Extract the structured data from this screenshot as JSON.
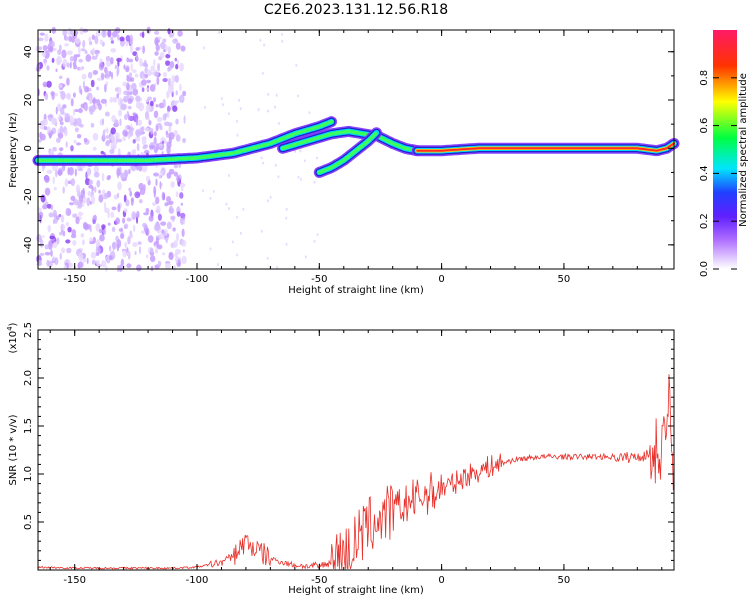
{
  "title": "C2E6.2023.131.12.56.R18",
  "chart_data": [
    {
      "type": "heatmap",
      "title": "C2E6.2023.131.12.56.R18",
      "xlabel": "Height of straight line (km)",
      "ylabel": "Frequency (Hz)",
      "xlim": [
        -165,
        95
      ],
      "ylim": [
        -50,
        49
      ],
      "xticks": [
        -150,
        -100,
        -50,
        0,
        50
      ],
      "yticks": [
        -40,
        -20,
        0,
        20,
        40
      ],
      "colorbar": {
        "label": "Normalized spectral amplitude",
        "range": [
          0,
          1
        ],
        "ticks": [
          0.0,
          0.2,
          0.4,
          0.6,
          0.8
        ],
        "colors": [
          "#ffffff",
          "#9b30ff",
          "#3030ff",
          "#00e5ff",
          "#00ff40",
          "#ffff00",
          "#ff3300",
          "#ff1a66"
        ]
      },
      "ridges": [
        {
          "x": [
            -165,
            -140,
            -120,
            -100,
            -85,
            -70,
            -60,
            -50,
            -45
          ],
          "y": [
            -5,
            -5,
            -5,
            -4,
            -2,
            2,
            6,
            9,
            11
          ]
        },
        {
          "x": [
            -65,
            -55,
            -45,
            -38,
            -32,
            -26,
            -20,
            -15,
            -10
          ],
          "y": [
            0,
            3,
            6,
            7,
            6,
            5,
            2,
            0,
            -1
          ]
        },
        {
          "x": [
            -50,
            -45,
            -40,
            -35,
            -30,
            -26
          ],
          "y": [
            -10,
            -8,
            -5,
            -1,
            3,
            7
          ]
        },
        {
          "x": [
            -10,
            0,
            15,
            40,
            60,
            80,
            88,
            92,
            95
          ],
          "y": [
            -1,
            -1,
            0,
            0,
            0,
            0,
            -1,
            0,
            2
          ]
        }
      ]
    },
    {
      "type": "line",
      "xlabel": "Height of straight line (km)",
      "ylabel": "SNR (10 * v/v)",
      "yscale_label": "(x10^4)",
      "xlim": [
        -165,
        95
      ],
      "ylim": [
        0,
        2.5
      ],
      "xticks": [
        -150,
        -100,
        -50,
        0,
        50
      ],
      "yticks": [
        0.5,
        1.0,
        1.5,
        2.0,
        2.5
      ],
      "color": "#e8302a",
      "series": [
        {
          "x": [
            -165,
            -150,
            -130,
            -110,
            -100,
            -90,
            -85,
            -80,
            -78,
            -75,
            -70,
            -65,
            -60,
            -55,
            -50,
            -45,
            -40,
            -35,
            -30,
            -25,
            -20,
            -15,
            -10,
            -5,
            0,
            5,
            10,
            20,
            30,
            40,
            50,
            60,
            70,
            75,
            80,
            85,
            88,
            90,
            92,
            93,
            94,
            95
          ],
          "y": [
            0.03,
            0.02,
            0.02,
            0.02,
            0.03,
            0.08,
            0.15,
            0.3,
            0.25,
            0.2,
            0.12,
            0.08,
            0.05,
            0.04,
            0.04,
            0.08,
            0.15,
            0.3,
            0.45,
            0.55,
            0.6,
            0.68,
            0.75,
            0.8,
            0.85,
            0.9,
            0.98,
            1.08,
            1.15,
            1.18,
            1.18,
            1.18,
            1.18,
            1.17,
            1.18,
            1.2,
            1.25,
            1.3,
            1.5,
            1.8,
            1.2,
            0.3
          ]
        }
      ]
    }
  ]
}
